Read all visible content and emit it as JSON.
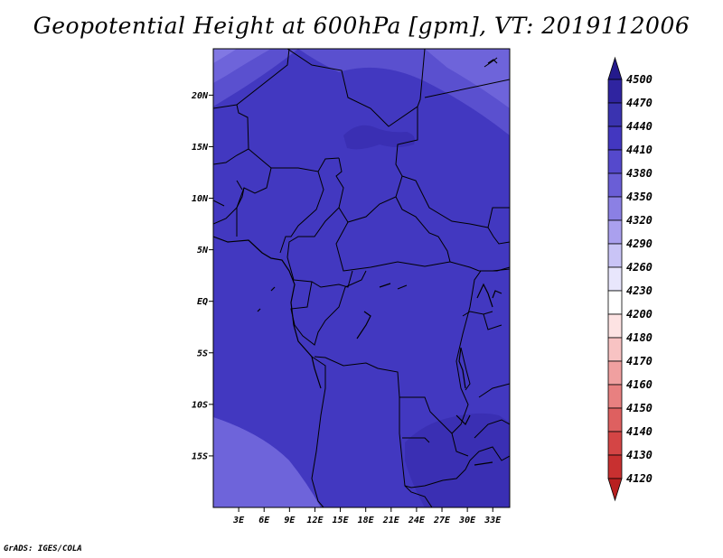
{
  "title": "Geopotential Height at 600hPa [gpm], VT: 2019112006",
  "credit": "GrADS: IGES/COLA",
  "map": {
    "lon_range": [
      0,
      35
    ],
    "lat_range": [
      -20,
      24.5
    ],
    "lon_ticks": [
      {
        "value": 3,
        "label": "3E"
      },
      {
        "value": 6,
        "label": "6E"
      },
      {
        "value": 9,
        "label": "9E"
      },
      {
        "value": 12,
        "label": "12E"
      },
      {
        "value": 15,
        "label": "15E"
      },
      {
        "value": 18,
        "label": "18E"
      },
      {
        "value": 21,
        "label": "21E"
      },
      {
        "value": 24,
        "label": "24E"
      },
      {
        "value": 27,
        "label": "27E"
      },
      {
        "value": 30,
        "label": "30E"
      },
      {
        "value": 33,
        "label": "33E"
      }
    ],
    "lat_ticks": [
      {
        "value": 20,
        "label": "20N"
      },
      {
        "value": 15,
        "label": "15N"
      },
      {
        "value": 10,
        "label": "10N"
      },
      {
        "value": 5,
        "label": "5N"
      },
      {
        "value": 0,
        "label": "EQ"
      },
      {
        "value": -5,
        "label": "5S"
      },
      {
        "value": -10,
        "label": "10S"
      },
      {
        "value": -15,
        "label": "15S"
      }
    ]
  },
  "colorbar": {
    "levels": [
      "4500",
      "4470",
      "4440",
      "4410",
      "4380",
      "4350",
      "4320",
      "4290",
      "4260",
      "4230",
      "4200",
      "4180",
      "4170",
      "4160",
      "4150",
      "4140",
      "4130",
      "4120"
    ],
    "colors": [
      "#241a8c",
      "#2f24a0",
      "#3a33b0",
      "#4337c0",
      "#5549cc",
      "#6a5ed6",
      "#8b80e4",
      "#aaa0ee",
      "#c9c4f6",
      "#e8e6fc",
      "#ffffff",
      "#fde3e3",
      "#f8c3c3",
      "#f0a0a0",
      "#e88080",
      "#de6060",
      "#d44545",
      "#c83030",
      "#b82020"
    ]
  },
  "field": {
    "base_color": "#4238c0",
    "light_color": "#5a50cf",
    "lighter_color": "#6e64da",
    "lightest_color": "#8178e3",
    "dark_color": "#3a2fb3"
  }
}
